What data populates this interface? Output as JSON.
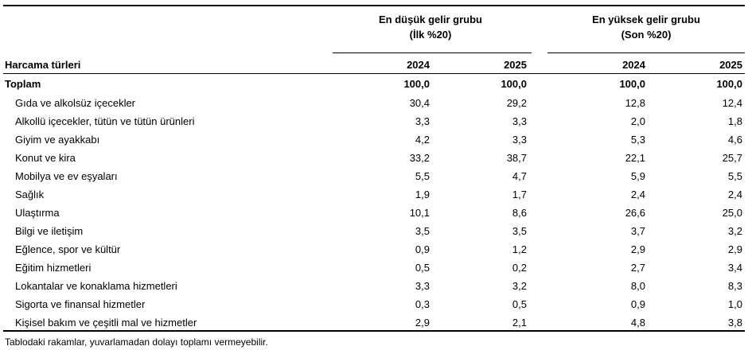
{
  "header": {
    "groups": [
      {
        "title": "En düşük gelir grubu",
        "subtitle": "(İlk %20)"
      },
      {
        "title": "En yüksek gelir grubu",
        "subtitle": "(Son %20)"
      }
    ],
    "row_label": "Harcama türleri",
    "years": [
      "2024",
      "2025",
      "2024",
      "2025"
    ]
  },
  "table": {
    "total": {
      "label": "Toplam",
      "values": [
        "100,0",
        "100,0",
        "100,0",
        "100,0"
      ]
    },
    "rows": [
      {
        "label": "Gıda ve alkolsüz içecekler",
        "values": [
          "30,4",
          "29,2",
          "12,8",
          "12,4"
        ]
      },
      {
        "label": "Alkollü içecekler, tütün ve tütün ürünleri",
        "values": [
          "3,3",
          "3,3",
          "2,0",
          "1,8"
        ]
      },
      {
        "label": "Giyim ve ayakkabı",
        "values": [
          "4,2",
          "3,3",
          "5,3",
          "4,6"
        ]
      },
      {
        "label": "Konut ve kira",
        "values": [
          "33,2",
          "38,7",
          "22,1",
          "25,7"
        ]
      },
      {
        "label": "Mobilya ve ev eşyaları",
        "values": [
          "5,5",
          "4,7",
          "5,9",
          "5,5"
        ]
      },
      {
        "label": "Sağlık",
        "values": [
          "1,9",
          "1,7",
          "2,4",
          "2,4"
        ]
      },
      {
        "label": "Ulaştırma",
        "values": [
          "10,1",
          "8,6",
          "26,6",
          "25,0"
        ]
      },
      {
        "label": "Bilgi ve iletişim",
        "values": [
          "3,5",
          "3,5",
          "3,7",
          "3,2"
        ]
      },
      {
        "label": "Eğlence, spor ve kültür",
        "values": [
          "0,9",
          "1,2",
          "2,9",
          "2,9"
        ]
      },
      {
        "label": "Eğitim hizmetleri",
        "values": [
          "0,5",
          "0,2",
          "2,7",
          "3,4"
        ]
      },
      {
        "label": "Lokantalar ve konaklama hizmetleri",
        "values": [
          "3,3",
          "3,2",
          "8,0",
          "8,3"
        ]
      },
      {
        "label": "Sigorta ve finansal hizmetler",
        "values": [
          "0,3",
          "0,5",
          "0,9",
          "1,0"
        ]
      },
      {
        "label": "Kişisel bakım ve çeşitli mal ve hizmetler",
        "values": [
          "2,9",
          "2,1",
          "4,8",
          "3,8"
        ]
      }
    ]
  },
  "footnote": "Tablodaki rakamlar, yuvarlamadan dolayı toplamı vermeyebilir."
}
